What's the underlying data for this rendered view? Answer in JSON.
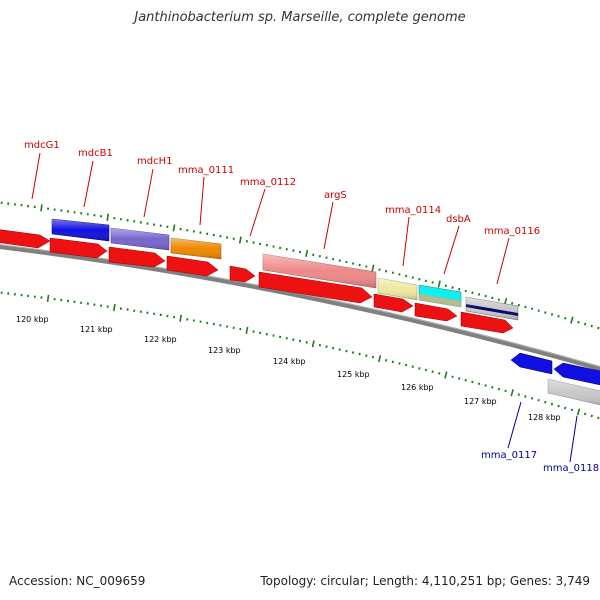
{
  "title": "Janthinobacterium sp. Marseille, complete genome",
  "footer": {
    "accession": "Accession: NC_009659",
    "stats": "Topology: circular; Length: 4,110,251 bp; Genes: 3,749"
  },
  "colors": {
    "forward_label": "#cc0000",
    "reverse_label": "#000099",
    "backbone": "#808080",
    "tick": "#1e7a1e",
    "red_cds": "#ee1111",
    "blue_cds": "#1010e0",
    "purple_cds": "#7766cc",
    "orange_cds": "#ee8800",
    "pink_cds": "#ee8888",
    "khaki_cds": "#eee8a0",
    "cyan_cds": "#11eeee",
    "gray_cds": "#c8c8c8"
  },
  "scale_labels": [
    "120 kbp",
    "121 kbp",
    "122 kbp",
    "123 kbp",
    "124 kbp",
    "125 kbp",
    "126 kbp",
    "127 kbp",
    "128 kbp"
  ],
  "gene_labels_forward": [
    "mdcG1",
    "mdcB1",
    "mdcH1",
    "mma_0111",
    "mma_0112",
    "argS",
    "mma_0114",
    "dsbA",
    "mma_0116"
  ],
  "gene_labels_reverse": [
    "mma_0117",
    "mma_0118"
  ]
}
